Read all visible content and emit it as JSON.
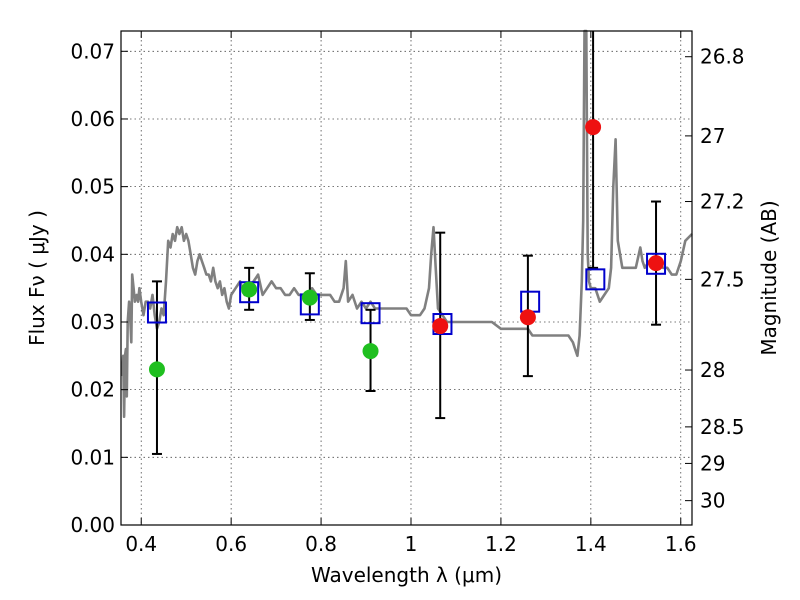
{
  "chart_data": {
    "type": "scatter",
    "xlabel": "Wavelength  λ (μm)",
    "ylabel": "Flux  Fν  ( μJy )",
    "y2label": "Magnitude (AB)",
    "xlim": [
      0.355,
      1.625
    ],
    "ylim": [
      0.0,
      0.073
    ],
    "x_ticks": [
      0.4,
      0.6,
      0.8,
      1.0,
      1.2,
      1.4,
      1.6
    ],
    "x_tick_labels": [
      "0.4",
      "0.6",
      "0.8",
      "1",
      "1.2",
      "1.4",
      "1.6"
    ],
    "y_ticks": [
      0.0,
      0.01,
      0.02,
      0.03,
      0.04,
      0.05,
      0.06,
      0.07
    ],
    "y_tick_labels": [
      "0.00",
      "0.01",
      "0.02",
      "0.03",
      "0.04",
      "0.05",
      "0.06",
      "0.07"
    ],
    "y2_ticks": [
      {
        "label": "26.8",
        "flux": 0.0692
      },
      {
        "label": "27",
        "flux": 0.0575
      },
      {
        "label": "27.2",
        "flux": 0.0478
      },
      {
        "label": "27.5",
        "flux": 0.0363
      },
      {
        "label": "28",
        "flux": 0.0229
      },
      {
        "label": "28.5",
        "flux": 0.0145
      },
      {
        "label": "29",
        "flux": 0.0091
      },
      {
        "label": "30",
        "flux": 0.0036
      }
    ],
    "grid": true,
    "colors": {
      "template": "#808080",
      "model_box": "#0000cc",
      "optical_obs": "#1fbf1f",
      "nir_obs": "#ee1111",
      "errorbar": "#000000"
    },
    "series": [
      {
        "type": "line",
        "points": [
          [
            0.357,
            0.022
          ],
          [
            0.36,
            0.025
          ],
          [
            0.362,
            0.016
          ],
          [
            0.364,
            0.025
          ],
          [
            0.366,
            0.026
          ],
          [
            0.368,
            0.019
          ],
          [
            0.37,
            0.03
          ],
          [
            0.373,
            0.033
          ],
          [
            0.376,
            0.03
          ],
          [
            0.378,
            0.027
          ],
          [
            0.38,
            0.037
          ],
          [
            0.383,
            0.035
          ],
          [
            0.386,
            0.033
          ],
          [
            0.39,
            0.034
          ],
          [
            0.393,
            0.033
          ],
          [
            0.396,
            0.035
          ],
          [
            0.4,
            0.033
          ],
          [
            0.405,
            0.031
          ],
          [
            0.41,
            0.033
          ],
          [
            0.415,
            0.033
          ],
          [
            0.42,
            0.032
          ],
          [
            0.425,
            0.034
          ],
          [
            0.43,
            0.031
          ],
          [
            0.435,
            0.029
          ],
          [
            0.44,
            0.03
          ],
          [
            0.445,
            0.032
          ],
          [
            0.45,
            0.031
          ],
          [
            0.455,
            0.036
          ],
          [
            0.46,
            0.042
          ],
          [
            0.465,
            0.041
          ],
          [
            0.47,
            0.043
          ],
          [
            0.475,
            0.042
          ],
          [
            0.48,
            0.044
          ],
          [
            0.485,
            0.043
          ],
          [
            0.49,
            0.044
          ],
          [
            0.495,
            0.042
          ],
          [
            0.5,
            0.043
          ],
          [
            0.505,
            0.042
          ],
          [
            0.51,
            0.04
          ],
          [
            0.515,
            0.038
          ],
          [
            0.52,
            0.037
          ],
          [
            0.525,
            0.039
          ],
          [
            0.53,
            0.04
          ],
          [
            0.535,
            0.039
          ],
          [
            0.54,
            0.038
          ],
          [
            0.545,
            0.037
          ],
          [
            0.55,
            0.037
          ],
          [
            0.555,
            0.036
          ],
          [
            0.56,
            0.038
          ],
          [
            0.565,
            0.036
          ],
          [
            0.57,
            0.035
          ],
          [
            0.575,
            0.036
          ],
          [
            0.58,
            0.034
          ],
          [
            0.585,
            0.035
          ],
          [
            0.59,
            0.033
          ],
          [
            0.595,
            0.032
          ],
          [
            0.6,
            0.034
          ],
          [
            0.61,
            0.035
          ],
          [
            0.62,
            0.036
          ],
          [
            0.63,
            0.034
          ],
          [
            0.64,
            0.035
          ],
          [
            0.65,
            0.036
          ],
          [
            0.66,
            0.037
          ],
          [
            0.67,
            0.034
          ],
          [
            0.68,
            0.035
          ],
          [
            0.69,
            0.036
          ],
          [
            0.7,
            0.035
          ],
          [
            0.71,
            0.035
          ],
          [
            0.72,
            0.034
          ],
          [
            0.73,
            0.034
          ],
          [
            0.74,
            0.035
          ],
          [
            0.75,
            0.034
          ],
          [
            0.76,
            0.034
          ],
          [
            0.77,
            0.033
          ],
          [
            0.78,
            0.035
          ],
          [
            0.79,
            0.034
          ],
          [
            0.8,
            0.034
          ],
          [
            0.81,
            0.034
          ],
          [
            0.82,
            0.034
          ],
          [
            0.83,
            0.033
          ],
          [
            0.84,
            0.033
          ],
          [
            0.85,
            0.035
          ],
          [
            0.855,
            0.039
          ],
          [
            0.86,
            0.033
          ],
          [
            0.87,
            0.034
          ],
          [
            0.88,
            0.032
          ],
          [
            0.89,
            0.033
          ],
          [
            0.9,
            0.032
          ],
          [
            0.91,
            0.033
          ],
          [
            0.92,
            0.032
          ],
          [
            0.93,
            0.032
          ],
          [
            0.94,
            0.032
          ],
          [
            0.95,
            0.032
          ],
          [
            0.96,
            0.032
          ],
          [
            0.97,
            0.032
          ],
          [
            0.98,
            0.032
          ],
          [
            0.99,
            0.032
          ],
          [
            1.0,
            0.031
          ],
          [
            1.01,
            0.031
          ],
          [
            1.02,
            0.031
          ],
          [
            1.03,
            0.032
          ],
          [
            1.04,
            0.035
          ],
          [
            1.045,
            0.04
          ],
          [
            1.05,
            0.044
          ],
          [
            1.055,
            0.038
          ],
          [
            1.06,
            0.032
          ],
          [
            1.07,
            0.031
          ],
          [
            1.08,
            0.03
          ],
          [
            1.09,
            0.03
          ],
          [
            1.1,
            0.03
          ],
          [
            1.12,
            0.03
          ],
          [
            1.14,
            0.03
          ],
          [
            1.16,
            0.03
          ],
          [
            1.18,
            0.03
          ],
          [
            1.2,
            0.029
          ],
          [
            1.21,
            0.029
          ],
          [
            1.22,
            0.029
          ],
          [
            1.23,
            0.029
          ],
          [
            1.24,
            0.029
          ],
          [
            1.25,
            0.029
          ],
          [
            1.26,
            0.029
          ],
          [
            1.27,
            0.028
          ],
          [
            1.28,
            0.028
          ],
          [
            1.3,
            0.028
          ],
          [
            1.32,
            0.028
          ],
          [
            1.34,
            0.028
          ],
          [
            1.35,
            0.028
          ],
          [
            1.36,
            0.027
          ],
          [
            1.365,
            0.026
          ],
          [
            1.37,
            0.025
          ],
          [
            1.375,
            0.028
          ],
          [
            1.38,
            0.036
          ],
          [
            1.383,
            0.045
          ],
          [
            1.386,
            0.073
          ],
          [
            1.39,
            0.073
          ],
          [
            1.393,
            0.04
          ],
          [
            1.396,
            0.036
          ],
          [
            1.4,
            0.035
          ],
          [
            1.41,
            0.035
          ],
          [
            1.42,
            0.033
          ],
          [
            1.43,
            0.034
          ],
          [
            1.44,
            0.035
          ],
          [
            1.445,
            0.038
          ],
          [
            1.45,
            0.05
          ],
          [
            1.455,
            0.057
          ],
          [
            1.46,
            0.042
          ],
          [
            1.47,
            0.038
          ],
          [
            1.48,
            0.038
          ],
          [
            1.49,
            0.038
          ],
          [
            1.5,
            0.038
          ],
          [
            1.51,
            0.041
          ],
          [
            1.515,
            0.039
          ],
          [
            1.52,
            0.038
          ],
          [
            1.53,
            0.039
          ],
          [
            1.54,
            0.039
          ],
          [
            1.55,
            0.039
          ],
          [
            1.56,
            0.038
          ],
          [
            1.57,
            0.038
          ],
          [
            1.58,
            0.037
          ],
          [
            1.59,
            0.037
          ],
          [
            1.6,
            0.039
          ],
          [
            1.61,
            0.042
          ],
          [
            1.625,
            0.043
          ]
        ]
      },
      {
        "type": "errorbar",
        "points": [
          {
            "x": 0.435,
            "lo": 0.0105,
            "hi": 0.036
          },
          {
            "x": 0.64,
            "lo": 0.0318,
            "hi": 0.038
          },
          {
            "x": 0.775,
            "lo": 0.0303,
            "hi": 0.0372
          },
          {
            "x": 0.91,
            "lo": 0.0198,
            "hi": 0.0318
          },
          {
            "x": 1.065,
            "lo": 0.0158,
            "hi": 0.0432
          },
          {
            "x": 1.26,
            "lo": 0.022,
            "hi": 0.0398
          },
          {
            "x": 1.405,
            "lo": 0.038,
            "hi": 0.073
          },
          {
            "x": 1.545,
            "lo": 0.0296,
            "hi": 0.0478
          }
        ]
      },
      {
        "type": "scatter",
        "marker": "square",
        "points": [
          [
            0.435,
            0.0314
          ],
          [
            0.64,
            0.0344
          ],
          [
            0.775,
            0.0326
          ],
          [
            0.91,
            0.0313
          ],
          [
            1.07,
            0.0297
          ],
          [
            1.265,
            0.033
          ],
          [
            1.41,
            0.0363
          ],
          [
            1.545,
            0.0386
          ]
        ]
      },
      {
        "type": "scatter",
        "marker": "circle",
        "color_key": "optical_obs",
        "points": [
          [
            0.435,
            0.023
          ],
          [
            0.64,
            0.0348
          ],
          [
            0.775,
            0.0336
          ],
          [
            0.91,
            0.0257
          ]
        ]
      },
      {
        "type": "scatter",
        "marker": "circle",
        "color_key": "nir_obs",
        "points": [
          [
            1.065,
            0.0294
          ],
          [
            1.26,
            0.0307
          ],
          [
            1.405,
            0.0588
          ],
          [
            1.545,
            0.0387
          ]
        ]
      }
    ]
  }
}
